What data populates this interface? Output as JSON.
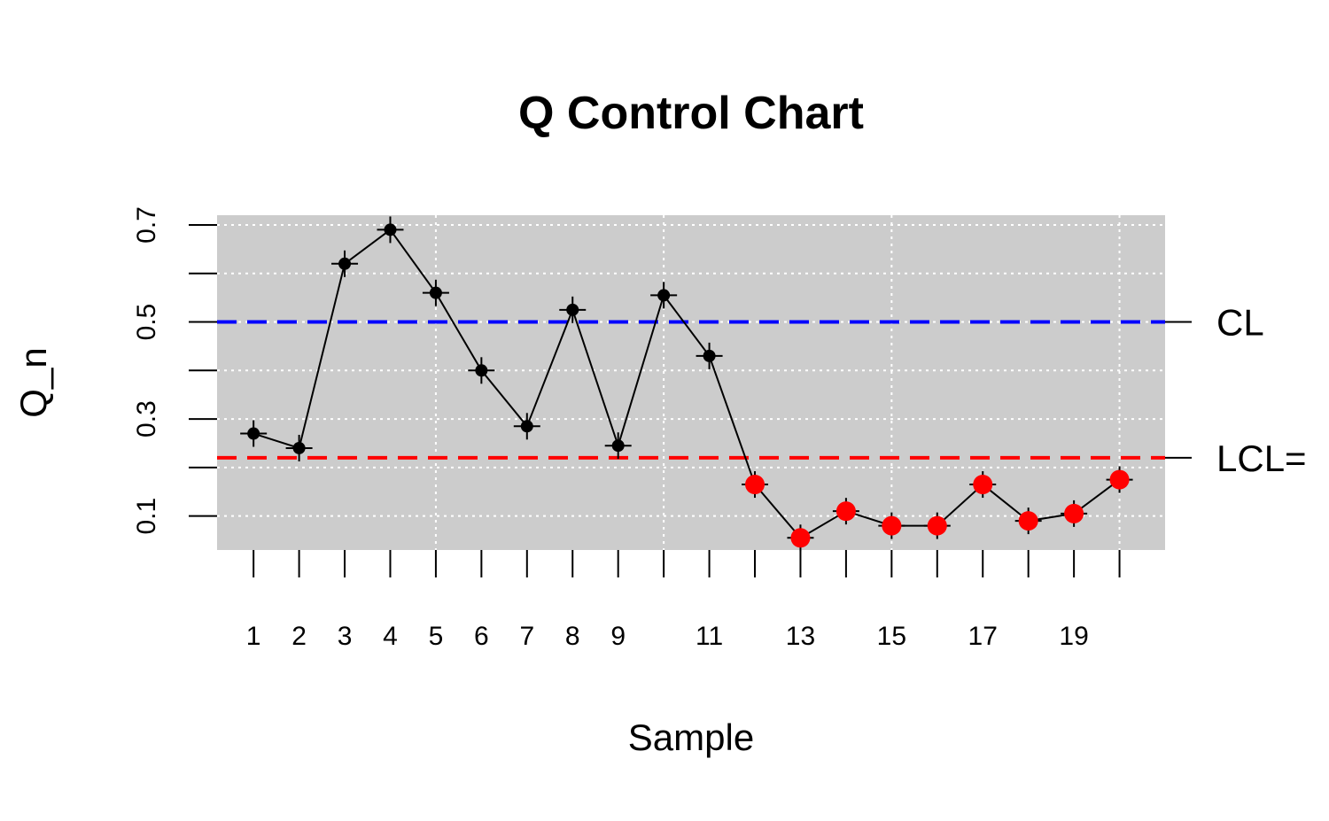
{
  "chart_data": {
    "type": "line",
    "title": "Q Control Chart",
    "xlabel": "Sample",
    "ylabel": "Q_n",
    "x": [
      1,
      2,
      3,
      4,
      5,
      6,
      7,
      8,
      9,
      10,
      11,
      12,
      13,
      14,
      15,
      16,
      17,
      18,
      19,
      20
    ],
    "x_tick_labels": [
      "1",
      "2",
      "3",
      "4",
      "5",
      "6",
      "7",
      "8",
      "9",
      "11",
      "13",
      "15",
      "17",
      "19"
    ],
    "x_tick_labels_at": [
      1,
      2,
      3,
      4,
      5,
      6,
      7,
      8,
      9,
      11,
      13,
      15,
      17,
      19
    ],
    "y_ticks": [
      0.1,
      0.3,
      0.5,
      0.7
    ],
    "y_tick_labels": [
      "0.1",
      "0.3",
      "0.5",
      "0.7"
    ],
    "ylim": [
      0.03,
      0.72
    ],
    "xlim": [
      0.2,
      21.0
    ],
    "series": [
      {
        "values": [
          0.27,
          0.24,
          0.62,
          0.69,
          0.56,
          0.4,
          0.285,
          0.525,
          0.245,
          0.555,
          0.43,
          0.165,
          0.055,
          0.11,
          0.08,
          0.08,
          0.165,
          0.09,
          0.105,
          0.175
        ],
        "out_of_control": [
          false,
          false,
          false,
          false,
          false,
          false,
          false,
          false,
          false,
          false,
          false,
          true,
          true,
          true,
          true,
          true,
          true,
          true,
          true,
          true
        ]
      }
    ],
    "reference_lines": [
      {
        "label": "CL",
        "value": 0.5,
        "color": "#0000ff"
      },
      {
        "label": "LCL=",
        "value": 0.22,
        "color": "#ff0000"
      }
    ],
    "grid": true,
    "panel_background": "#cccccc",
    "point_color": "#000000",
    "out_of_control_color": "#ff0000"
  }
}
